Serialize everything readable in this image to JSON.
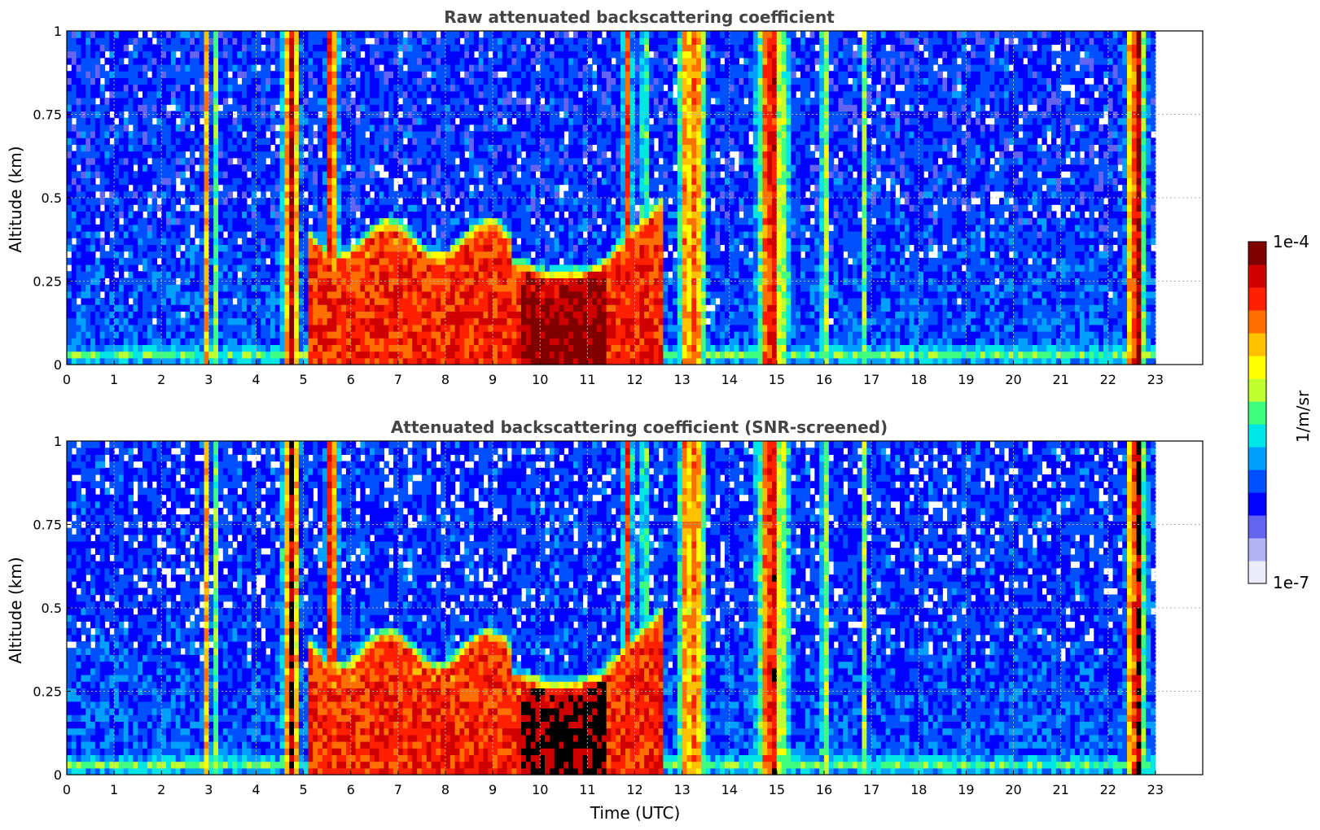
{
  "chart_data": [
    {
      "type": "heatmap",
      "title": "Raw attenuated backscattering coefficient",
      "xlabel": "",
      "ylabel": "Altitude (km)",
      "xlim": [
        0,
        24
      ],
      "ylim": [
        0,
        1
      ],
      "xticks": [
        "0",
        "1",
        "2",
        "3",
        "4",
        "5",
        "6",
        "7",
        "8",
        "9",
        "10",
        "11",
        "12",
        "13",
        "14",
        "15",
        "16",
        "17",
        "18",
        "19",
        "20",
        "21",
        "22",
        "23"
      ],
      "yticks": [
        "0",
        "0.25",
        "0.5",
        "0.75",
        "1"
      ],
      "grid": true,
      "screened": false,
      "data_end_hour": 23
    },
    {
      "type": "heatmap",
      "title": "Attenuated backscattering coefficient (SNR-screened)",
      "xlabel": "Time (UTC)",
      "ylabel": "Altitude (km)",
      "xlim": [
        0,
        24
      ],
      "ylim": [
        0,
        1
      ],
      "xticks": [
        "0",
        "1",
        "2",
        "3",
        "4",
        "5",
        "6",
        "7",
        "8",
        "9",
        "10",
        "11",
        "12",
        "13",
        "14",
        "15",
        "16",
        "17",
        "18",
        "19",
        "20",
        "21",
        "22",
        "23"
      ],
      "yticks": [
        "0",
        "0.25",
        "0.5",
        "0.75",
        "1"
      ],
      "grid": true,
      "screened": true,
      "data_end_hour": 23
    }
  ],
  "colorbar": {
    "label": "1/m/sr",
    "max_label": "1e-4",
    "min_label": "1e-7",
    "scale": "log",
    "colors": [
      "#ebebfa",
      "#b4b4f5",
      "#6464f0",
      "#0000ff",
      "#0050ff",
      "#00a0ff",
      "#00e6e6",
      "#40ff80",
      "#c0ff30",
      "#ffff00",
      "#ffc000",
      "#ff7000",
      "#ff2000",
      "#d00000",
      "#800000"
    ]
  }
}
